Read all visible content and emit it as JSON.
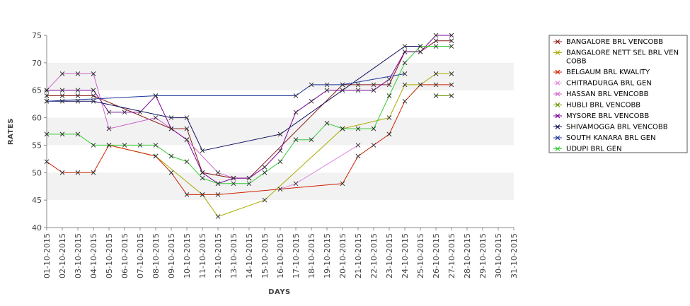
{
  "chart_data": {
    "type": "line",
    "title": "",
    "xlabel": "DAYS",
    "ylabel": "RATES",
    "ylim": [
      40,
      75
    ],
    "yticks": [
      40,
      45,
      50,
      55,
      60,
      65,
      70,
      75
    ],
    "grid": "alternating horizontal bands",
    "legend_position": "right",
    "categories": [
      "01-10-2015",
      "02-10-2015",
      "03-10-2015",
      "04-10-2015",
      "05-10-2015",
      "06-10-2015",
      "07-10-2015",
      "08-10-2015",
      "09-10-2015",
      "10-10-2015",
      "11-10-2015",
      "12-10-2015",
      "13-10-2015",
      "14-10-2015",
      "15-10-2015",
      "16-10-2015",
      "17-10-2015",
      "18-10-2015",
      "19-10-2015",
      "20-10-2015",
      "21-10-2015",
      "22-10-2015",
      "23-10-2015",
      "24-10-2015",
      "25-10-2015",
      "26-10-2015",
      "27-10-2015",
      "28-10-2015",
      "29-10-2015",
      "30-10-2015",
      "31-10-2015"
    ],
    "series": [
      {
        "name": "BANGALORE BRL VENCOBB",
        "color": "#8B1A1A",
        "values": [
          64,
          64,
          64,
          64,
          null,
          null,
          null,
          null,
          58,
          58,
          50,
          null,
          49,
          49,
          null,
          null,
          null,
          null,
          null,
          66,
          66,
          66,
          66,
          72,
          72,
          74,
          74,
          null,
          null,
          null,
          null
        ]
      },
      {
        "name": "BANGALORE NETT SEL BRL VENCOBB",
        "color": "#AAAA00",
        "values": [
          null,
          null,
          null,
          null,
          55,
          null,
          null,
          53,
          null,
          null,
          46,
          42,
          null,
          null,
          45,
          null,
          null,
          null,
          null,
          58,
          null,
          null,
          60,
          66,
          66,
          68,
          68,
          null,
          null,
          null,
          null
        ]
      },
      {
        "name": "BELGAUM BRL KWALITY",
        "color": "#CC2200",
        "values": [
          52,
          50,
          50,
          50,
          55,
          null,
          null,
          53,
          50,
          46,
          46,
          46,
          null,
          null,
          null,
          null,
          null,
          null,
          null,
          48,
          53,
          55,
          57,
          63,
          66,
          66,
          66,
          null,
          null,
          null,
          null
        ]
      },
      {
        "name": "CHITRADURGA BRL GEN",
        "color": "#DD88DD",
        "values": [
          null,
          null,
          null,
          null,
          null,
          null,
          null,
          null,
          null,
          null,
          null,
          null,
          null,
          null,
          null,
          47,
          48,
          null,
          null,
          null,
          55,
          null,
          null,
          null,
          null,
          null,
          null,
          null,
          null,
          null,
          null
        ]
      },
      {
        "name": "HASSAN BRL VENCOBB",
        "color": "#CC66CC",
        "values": [
          65,
          68,
          68,
          68,
          58,
          null,
          null,
          60,
          null,
          56,
          null,
          50,
          49,
          null,
          null,
          null,
          null,
          null,
          null,
          null,
          null,
          null,
          null,
          null,
          null,
          null,
          null,
          null,
          null,
          null,
          null
        ]
      },
      {
        "name": "HUBLI BRL VENCOBB",
        "color": "#669900",
        "values": [
          null,
          null,
          null,
          null,
          null,
          null,
          null,
          null,
          null,
          null,
          null,
          null,
          null,
          null,
          null,
          null,
          null,
          null,
          null,
          null,
          null,
          null,
          null,
          null,
          null,
          64,
          64,
          null,
          null,
          null,
          null
        ]
      },
      {
        "name": "MYSORE BRL VENCOBB",
        "color": "#770099",
        "values": [
          65,
          65,
          65,
          65,
          61,
          61,
          61,
          64,
          58,
          56,
          50,
          48,
          49,
          49,
          51,
          54,
          61,
          63,
          65,
          65,
          65,
          65,
          67,
          72,
          72,
          75,
          75,
          null,
          null,
          null,
          null
        ]
      },
      {
        "name": "SHIVAMOGGA BRL VENCOBB",
        "color": "#101060",
        "values": [
          63,
          63,
          63,
          63,
          null,
          null,
          null,
          null,
          60,
          60,
          54,
          null,
          null,
          null,
          null,
          57,
          null,
          null,
          null,
          null,
          null,
          null,
          null,
          73,
          73,
          null,
          null,
          null,
          null,
          null,
          null
        ]
      },
      {
        "name": "SOUTH KANARA BRL GEN",
        "color": "#1A3399",
        "values": [
          63,
          null,
          null,
          null,
          null,
          null,
          null,
          64,
          null,
          null,
          null,
          null,
          null,
          null,
          null,
          null,
          64,
          66,
          66,
          66,
          null,
          null,
          null,
          68,
          null,
          null,
          null,
          null,
          null,
          null,
          null
        ]
      },
      {
        "name": "UDUPI BRL GEN",
        "color": "#33CC33",
        "values": [
          57,
          57,
          57,
          55,
          55,
          55,
          55,
          55,
          53,
          52,
          49,
          48,
          48,
          48,
          50,
          52,
          56,
          56,
          59,
          58,
          58,
          58,
          64,
          70,
          73,
          73,
          73,
          null,
          null,
          null,
          null
        ]
      }
    ]
  }
}
